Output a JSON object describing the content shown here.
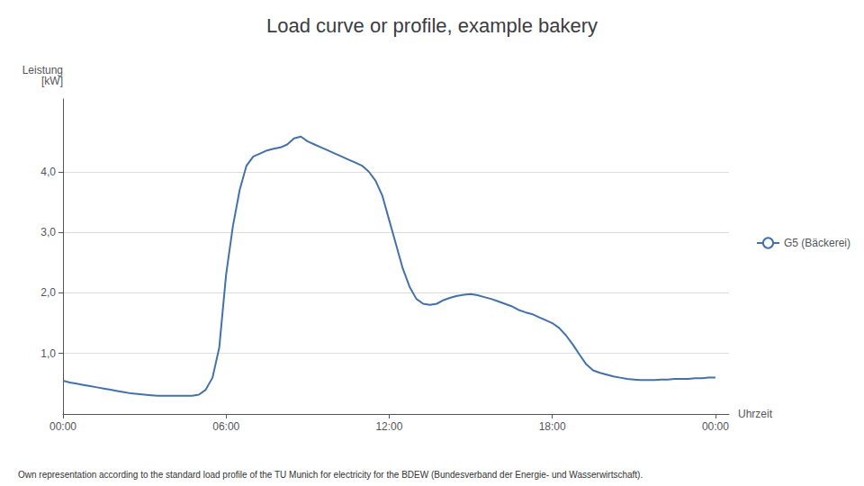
{
  "chart_data": {
    "type": "line",
    "title": "Load curve or profile, example bakery",
    "ylabel": [
      "Leistung",
      "[kW]"
    ],
    "xlabel": "Uhrzeit",
    "annotations": [
      "Own representation according to the standard load profile of the TU Munich for electricity for the BDEW (Bundesverband der Energie- und Wasserwirtschaft)."
    ],
    "x": [
      0.0,
      0.25,
      0.5,
      0.75,
      1.0,
      1.25,
      1.5,
      1.75,
      2.0,
      2.25,
      2.5,
      2.75,
      3.0,
      3.25,
      3.5,
      3.75,
      4.0,
      4.25,
      4.5,
      4.75,
      5.0,
      5.25,
      5.5,
      5.75,
      6.0,
      6.25,
      6.5,
      6.75,
      7.0,
      7.25,
      7.5,
      7.75,
      8.0,
      8.25,
      8.5,
      8.75,
      9.0,
      9.25,
      9.5,
      9.75,
      10.0,
      10.25,
      10.5,
      10.75,
      11.0,
      11.25,
      11.5,
      11.75,
      12.0,
      12.25,
      12.5,
      12.75,
      13.0,
      13.25,
      13.5,
      13.75,
      14.0,
      14.25,
      14.5,
      14.75,
      15.0,
      15.25,
      15.5,
      15.75,
      16.0,
      16.25,
      16.5,
      16.75,
      17.0,
      17.25,
      17.5,
      17.75,
      18.0,
      18.25,
      18.5,
      18.75,
      19.0,
      19.25,
      19.5,
      19.75,
      20.0,
      20.25,
      20.5,
      20.75,
      21.0,
      21.25,
      21.5,
      21.75,
      22.0,
      22.25,
      22.5,
      22.75,
      23.0,
      23.25,
      23.5,
      23.75,
      24.0
    ],
    "series": [
      {
        "name": "G5 (Bäckerei)",
        "color": "#4472a8",
        "values": [
          0.55,
          0.52,
          0.5,
          0.48,
          0.46,
          0.44,
          0.42,
          0.4,
          0.38,
          0.36,
          0.34,
          0.33,
          0.32,
          0.31,
          0.3,
          0.3,
          0.3,
          0.3,
          0.3,
          0.3,
          0.32,
          0.4,
          0.6,
          1.1,
          2.3,
          3.1,
          3.7,
          4.1,
          4.25,
          4.3,
          4.35,
          4.38,
          4.4,
          4.45,
          4.55,
          4.58,
          4.5,
          4.45,
          4.4,
          4.35,
          4.3,
          4.25,
          4.2,
          4.15,
          4.1,
          4.0,
          3.85,
          3.6,
          3.2,
          2.8,
          2.4,
          2.1,
          1.9,
          1.82,
          1.8,
          1.82,
          1.88,
          1.92,
          1.95,
          1.97,
          1.98,
          1.96,
          1.93,
          1.9,
          1.86,
          1.82,
          1.78,
          1.72,
          1.68,
          1.65,
          1.6,
          1.55,
          1.5,
          1.42,
          1.3,
          1.15,
          0.98,
          0.82,
          0.72,
          0.68,
          0.65,
          0.62,
          0.6,
          0.58,
          0.57,
          0.56,
          0.56,
          0.56,
          0.57,
          0.57,
          0.58,
          0.58,
          0.58,
          0.59,
          0.59,
          0.6,
          0.6
        ]
      }
    ],
    "xlim": [
      0,
      24.5
    ],
    "xticks": [
      {
        "value": 0,
        "label": "00:00"
      },
      {
        "value": 6,
        "label": "06:00"
      },
      {
        "value": 12,
        "label": "12:00"
      },
      {
        "value": 18,
        "label": "18:00"
      },
      {
        "value": 24,
        "label": "00:00"
      }
    ],
    "ylim": [
      0.0,
      5.2
    ],
    "yticks": [
      {
        "value": 1.0,
        "label": "1,0"
      },
      {
        "value": 2.0,
        "label": "2,0"
      },
      {
        "value": 3.0,
        "label": "3,0"
      },
      {
        "value": 4.0,
        "label": "4,0"
      }
    ],
    "grid": "y",
    "legend": "right"
  }
}
